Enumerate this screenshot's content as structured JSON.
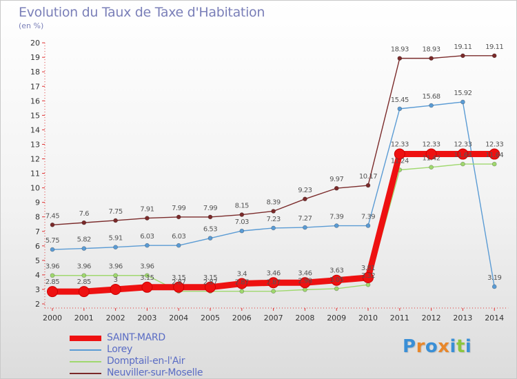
{
  "title": "Evolution du Taux de Taxe d'Habitation",
  "subtitle": "(en %)",
  "logo": {
    "letters": [
      "P",
      "r",
      "o",
      "x",
      "i",
      "t",
      "i"
    ],
    "colors": [
      "#3a8fd6",
      "#e8872b",
      "#3a8fd6",
      "#e8872b",
      "#3a8fd6",
      "#8cc63f",
      "#3a8fd6"
    ]
  },
  "chart_data": {
    "type": "line",
    "title": "Evolution du Taux de Taxe d'Habitation",
    "ylabel": "(en %)",
    "xlabel": "",
    "x": [
      "2000",
      "2001",
      "2002",
      "2003",
      "2004",
      "2005",
      "2006",
      "2007",
      "2008",
      "2009",
      "2010",
      "2011",
      "2012",
      "2013",
      "2014"
    ],
    "ylim": [
      2,
      20
    ],
    "yticks": [
      2,
      3,
      4,
      5,
      6,
      7,
      8,
      9,
      10,
      11,
      12,
      13,
      14,
      15,
      16,
      17,
      18,
      19,
      20
    ],
    "grid": false,
    "legend_position": "bottom-left",
    "series": [
      {
        "name": "Neuviller-sur-Moselle",
        "color": "#7a2a2a",
        "values": [
          7.45,
          7.6,
          7.75,
          7.91,
          7.99,
          7.99,
          8.15,
          8.39,
          9.23,
          9.97,
          10.17,
          18.93,
          18.93,
          19.11,
          19.11
        ],
        "labels": [
          "7.45",
          "7.6",
          "7.75",
          "7.91",
          "7.99",
          "7.99",
          "8.15",
          "8.39",
          "9.23",
          "9.97",
          "10.17",
          "18.93",
          "18.93",
          "19.11",
          "19.11"
        ]
      },
      {
        "name": "Lorey",
        "color": "#5a9bd4",
        "values": [
          5.75,
          5.82,
          5.91,
          6.03,
          6.03,
          6.53,
          7.03,
          7.23,
          7.27,
          7.39,
          7.39,
          15.45,
          15.68,
          15.92,
          3.19
        ],
        "labels": [
          "5.75",
          "5.82",
          "5.91",
          "6.03",
          "6.03",
          "6.53",
          "7.03",
          "7.23",
          "7.27",
          "7.39",
          "7.39",
          "15.45",
          "15.68",
          "15.92",
          "3.19"
        ]
      },
      {
        "name": "Domptail-en-l'Air",
        "color": "#9fd86e",
        "values": [
          3.96,
          3.96,
          3.96,
          3.96,
          2.87,
          2.87,
          2.87,
          2.87,
          2.98,
          3.05,
          3.32,
          11.24,
          11.42,
          11.64,
          11.64
        ],
        "labels": [
          "3.96",
          "3.96",
          "3.96",
          "3.96",
          "2.87",
          "2.87",
          "2.87",
          "2.87",
          "2.98",
          "3.05",
          "3.32",
          "11.24",
          "11.42",
          "11.64",
          "11.64"
        ]
      },
      {
        "name": "SAINT-MARD",
        "color": "#ee1111",
        "values": [
          2.85,
          2.85,
          3.0,
          3.15,
          3.15,
          3.15,
          3.4,
          3.46,
          3.46,
          3.63,
          3.81,
          12.33,
          12.33,
          12.33,
          12.33
        ],
        "labels": [
          "2.85",
          "2.85",
          "3",
          "3.15",
          "3.15",
          "3.15",
          "3.4",
          "3.46",
          "3.46",
          "3.63",
          "3.81",
          "12.33",
          "12.33",
          "12.33",
          "12.33"
        ]
      }
    ],
    "legend": [
      {
        "name": "SAINT-MARD",
        "color": "#ee1111"
      },
      {
        "name": "Lorey",
        "color": "#5a9bd4"
      },
      {
        "name": "Domptail-en-l'Air",
        "color": "#9fd86e"
      },
      {
        "name": "Neuviller-sur-Moselle",
        "color": "#7a2a2a"
      }
    ]
  }
}
